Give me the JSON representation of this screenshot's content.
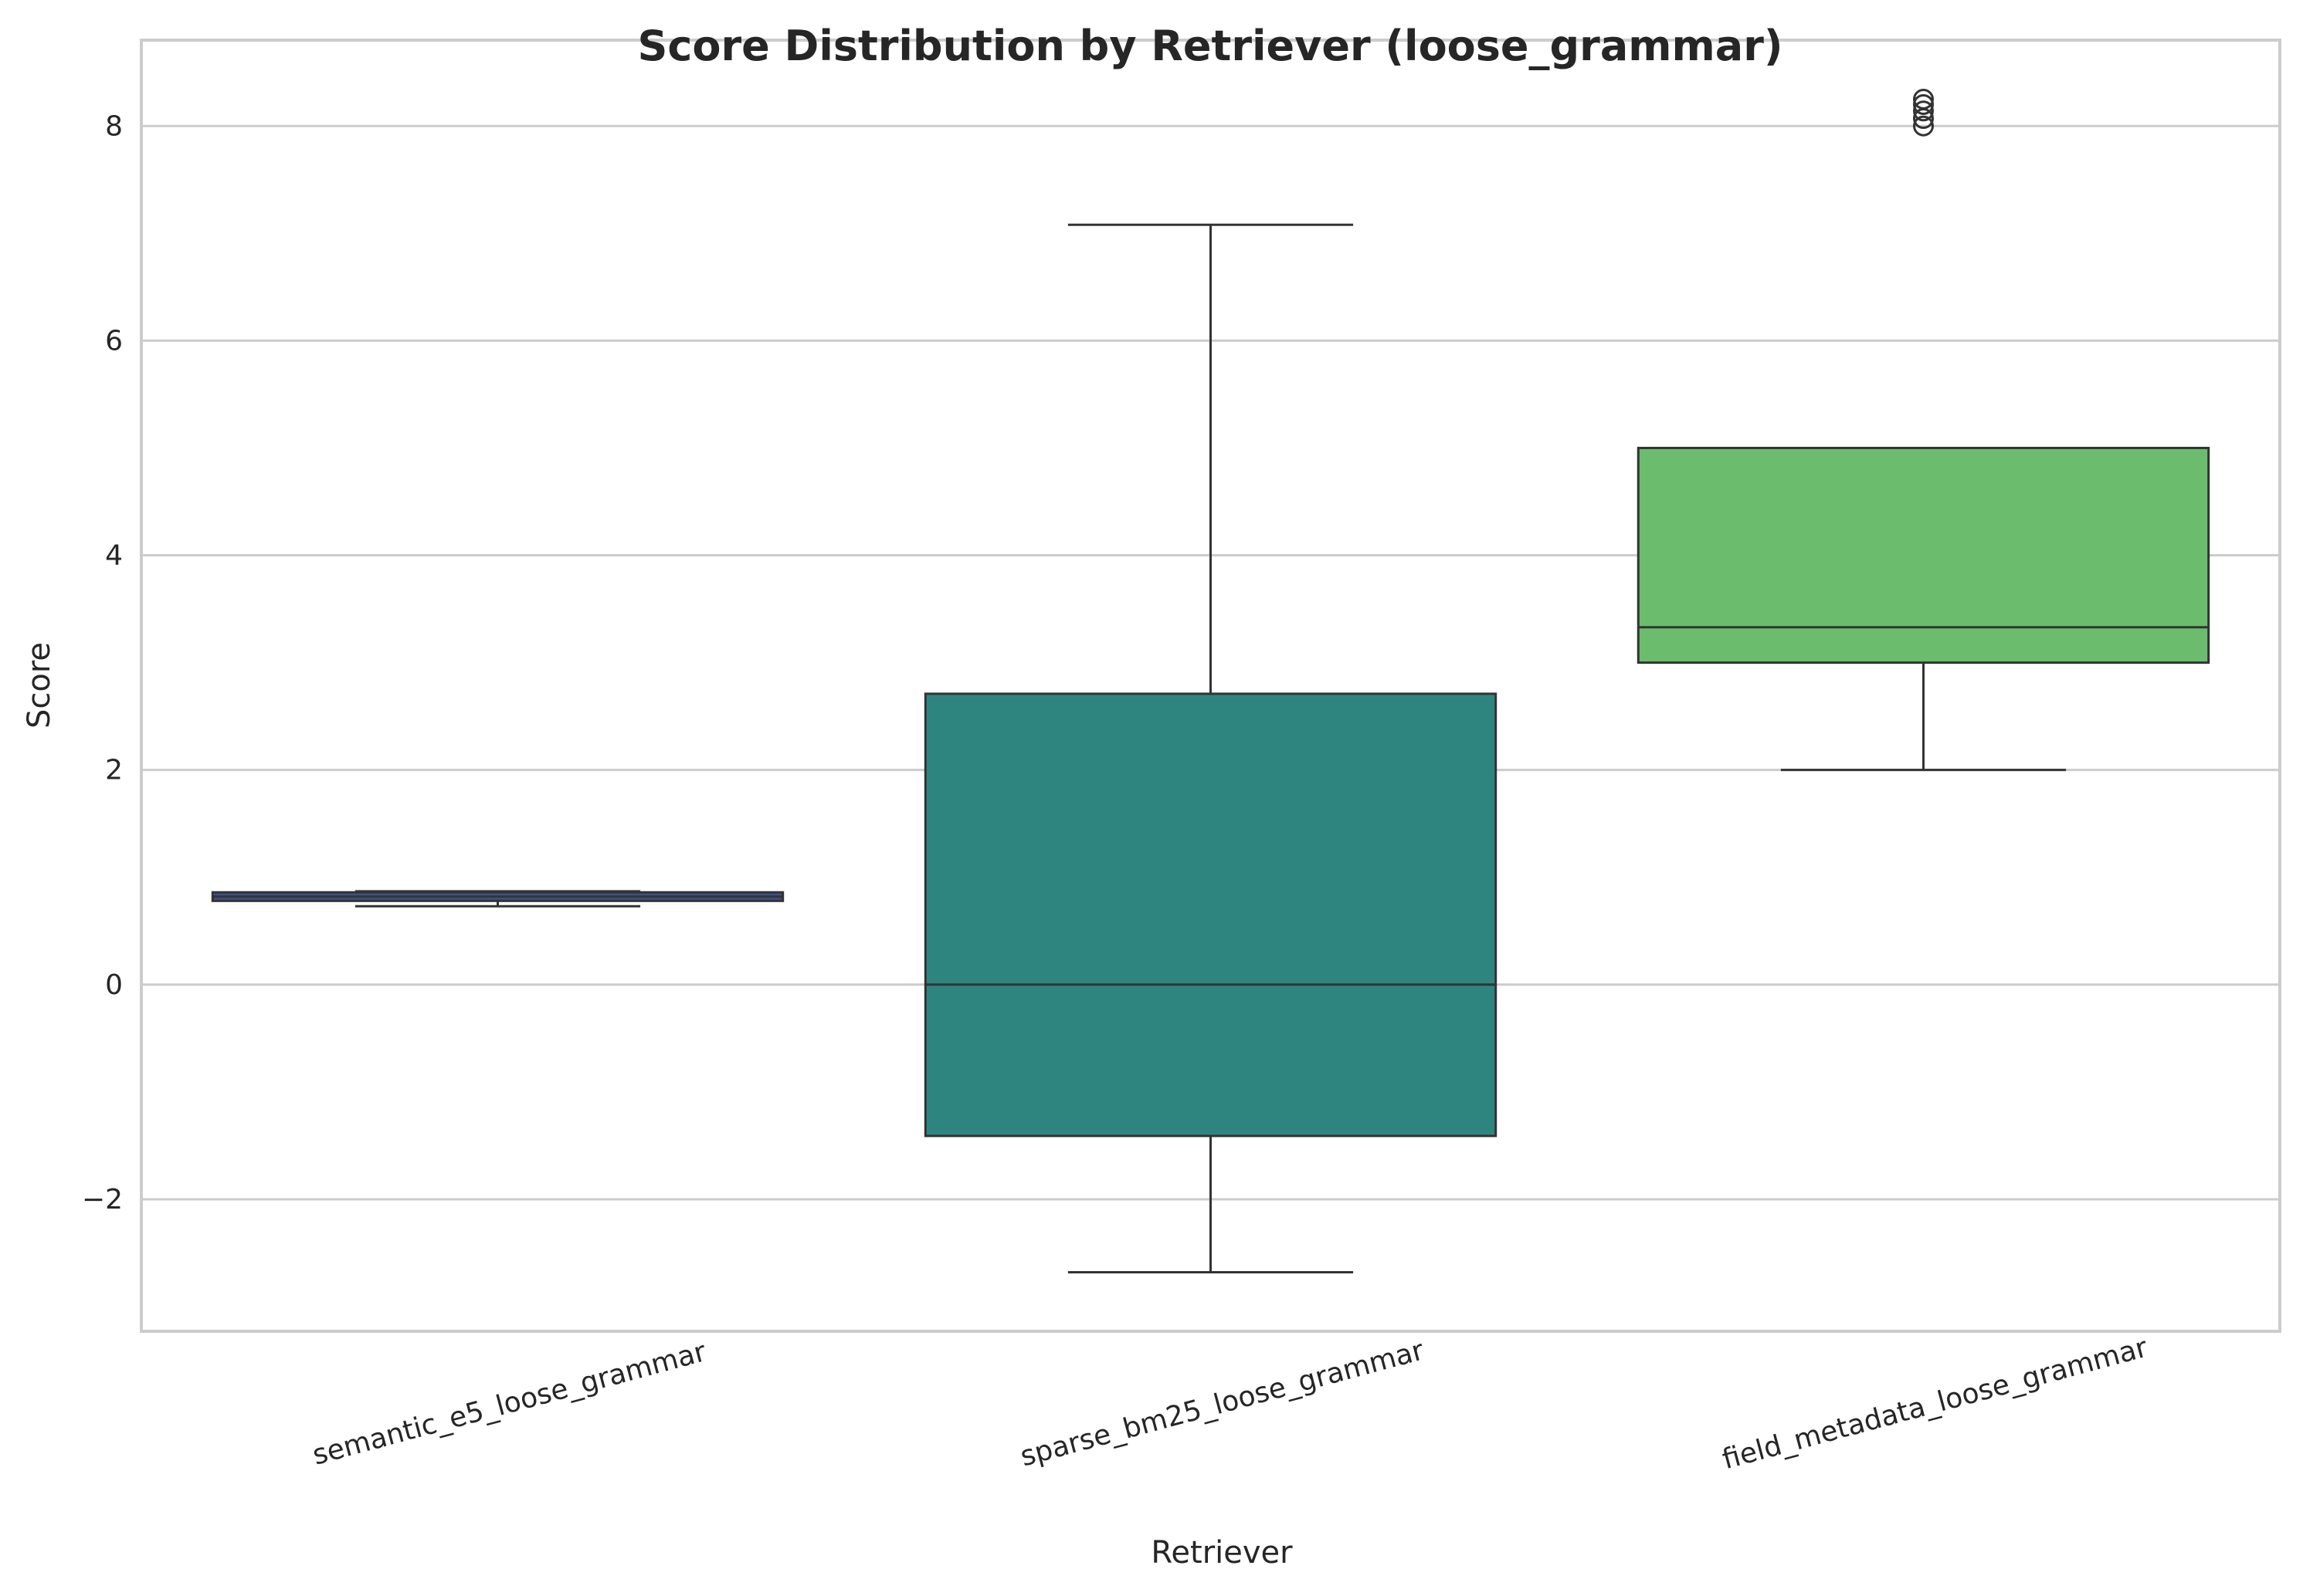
{
  "chart_data": {
    "type": "box",
    "title": "Score Distribution by Retriever (loose_grammar)",
    "xlabel": "Retriever",
    "ylabel": "Score",
    "ylim": [
      -3.23,
      8.8
    ],
    "yticks": [
      -2,
      0,
      2,
      4,
      6,
      8
    ],
    "ytick_labels": [
      "−2",
      "0",
      "2",
      "4",
      "6",
      "8"
    ],
    "grid": "horizontal",
    "categories": [
      "semantic_e5_loose_grammar",
      "sparse_bm25_loose_grammar",
      "field_metadata_loose_grammar"
    ],
    "boxes": [
      {
        "category": "semantic_e5_loose_grammar",
        "whisker_low": 0.73,
        "q1": 0.78,
        "median": 0.82,
        "q3": 0.86,
        "whisker_high": 0.87,
        "outliers": [],
        "color": "#3b528b"
      },
      {
        "category": "sparse_bm25_loose_grammar",
        "whisker_low": -2.68,
        "q1": -1.41,
        "median": 0.0,
        "q3": 2.71,
        "whisker_high": 7.08,
        "outliers": [],
        "color": "#2e8580"
      },
      {
        "category": "field_metadata_loose_grammar",
        "whisker_low": 2.0,
        "q1": 3.0,
        "median": 3.33,
        "q3": 5.0,
        "whisker_high": 5.0,
        "outliers": [
          8.0,
          8.07,
          8.14,
          8.2,
          8.25
        ],
        "color": "#6bbd6d"
      }
    ]
  }
}
